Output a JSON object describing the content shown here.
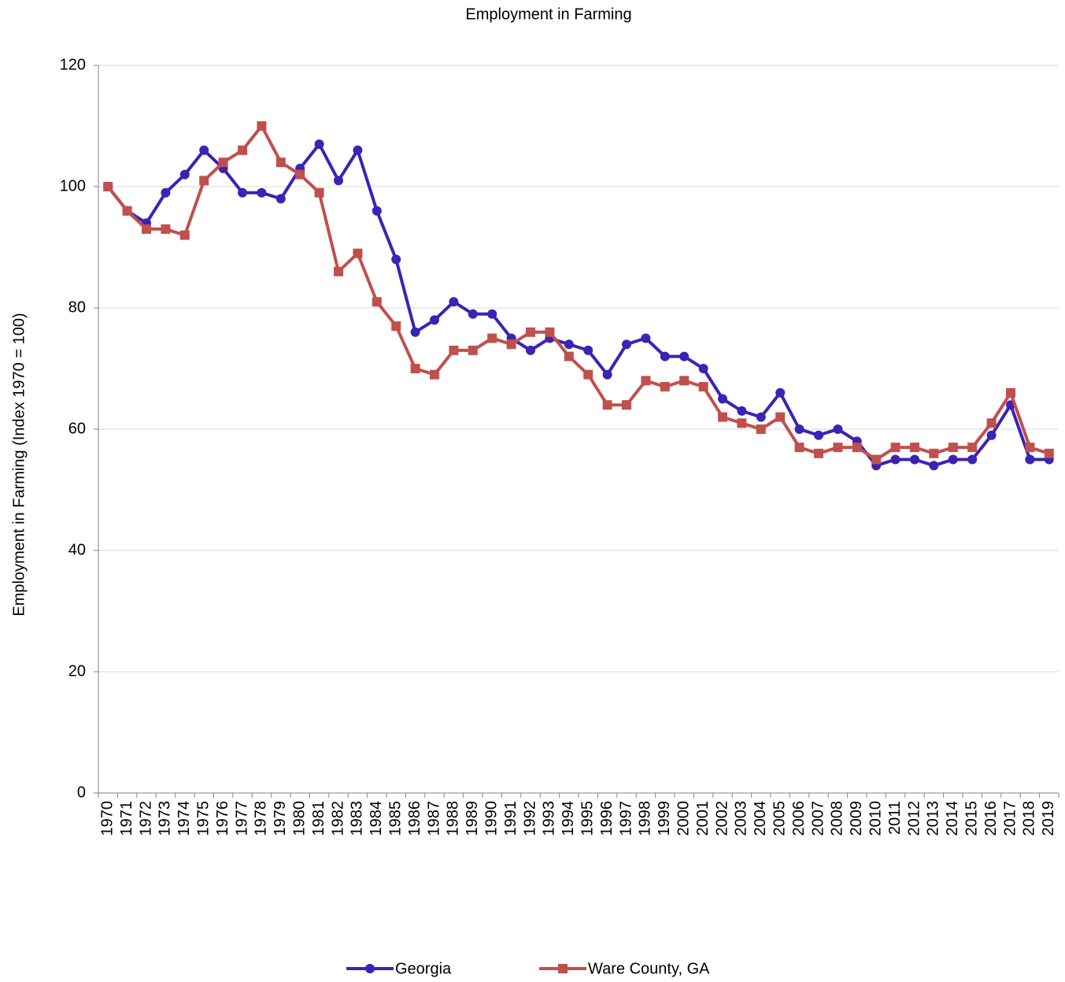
{
  "chart_data": {
    "type": "line",
    "title": "Employment in Farming",
    "y_label": "Employment in Farming (Index 1970 = 100)",
    "categories": [
      "1970",
      "1971",
      "1972",
      "1973",
      "1974",
      "1975",
      "1976",
      "1977",
      "1978",
      "1979",
      "1980",
      "1981",
      "1982",
      "1983",
      "1984",
      "1985",
      "1986",
      "1987",
      "1988",
      "1989",
      "1990",
      "1991",
      "1992",
      "1993",
      "1994",
      "1995",
      "1996",
      "1997",
      "1998",
      "1999",
      "2000",
      "2001",
      "2002",
      "2003",
      "2004",
      "2005",
      "2006",
      "2007",
      "2008",
      "2009",
      "2010",
      "2011",
      "2012",
      "2013",
      "2014",
      "2015",
      "2016",
      "2017",
      "2018",
      "2019"
    ],
    "series": [
      {
        "name": "Georgia",
        "color": "#3b23b5",
        "marker": "circle",
        "values": [
          100,
          96,
          94,
          99,
          102,
          106,
          103,
          99,
          99,
          98,
          103,
          107,
          101,
          106,
          96,
          88,
          76,
          78,
          81,
          79,
          79,
          75,
          73,
          75,
          74,
          73,
          69,
          74,
          75,
          72,
          72,
          70,
          65,
          63,
          62,
          66,
          60,
          59,
          60,
          58,
          54,
          55,
          55,
          54,
          55,
          55,
          59,
          64,
          55,
          55
        ]
      },
      {
        "name": "Ware County, GA",
        "color": "#c0504d",
        "marker": "square",
        "values": [
          100,
          96,
          93,
          93,
          92,
          101,
          104,
          106,
          110,
          104,
          102,
          99,
          86,
          89,
          81,
          77,
          70,
          69,
          73,
          73,
          75,
          74,
          76,
          76,
          72,
          69,
          64,
          64,
          68,
          67,
          68,
          67,
          62,
          61,
          60,
          62,
          57,
          56,
          57,
          57,
          55,
          57,
          57,
          56,
          57,
          57,
          61,
          66,
          57,
          56
        ]
      }
    ],
    "ylim": [
      0,
      120
    ],
    "yticks": [
      0,
      20,
      40,
      60,
      80,
      100,
      120
    ],
    "grid": true,
    "legend": "bottom"
  }
}
